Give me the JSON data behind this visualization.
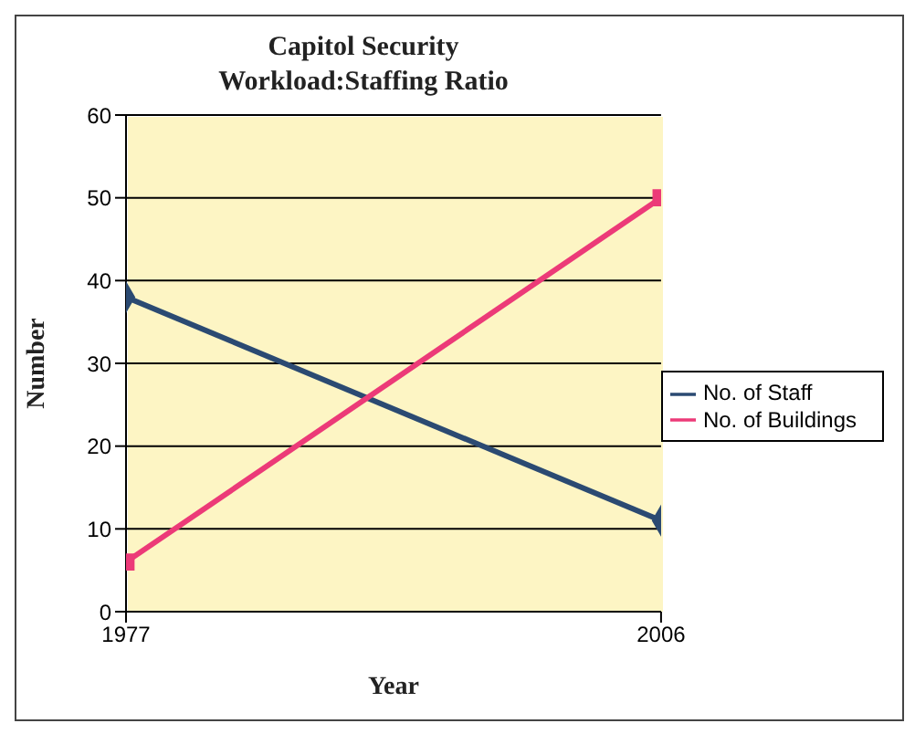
{
  "chart_data": {
    "type": "line",
    "title": "Capitol Security\nWorkload:Staffing Ratio",
    "xlabel": "Year",
    "ylabel": "Number",
    "x": [
      1977,
      2006
    ],
    "xlim": [
      1977,
      2006
    ],
    "xticks": [
      1977,
      2006
    ],
    "series": [
      {
        "name": "No. of Staff",
        "color": "#2b4a72",
        "values": [
          38,
          11
        ],
        "marker": "diamond"
      },
      {
        "name": "No. of Buildings",
        "color": "#ec3a78",
        "values": [
          6,
          50
        ],
        "marker": "square"
      }
    ],
    "ylim": [
      0,
      60
    ],
    "yticks": [
      0,
      10,
      20,
      30,
      40,
      50,
      60
    ],
    "grid": "y",
    "legend": "right",
    "line_style": "solid"
  }
}
